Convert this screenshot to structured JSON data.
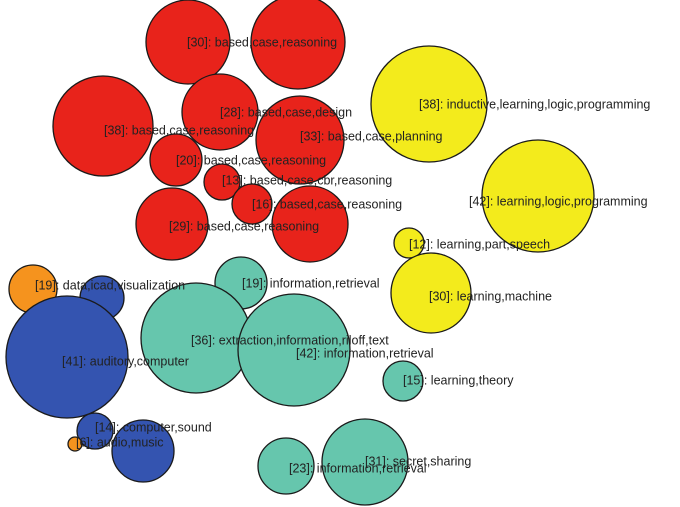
{
  "colors": {
    "red": "#e8231b",
    "yellow": "#f3eb1c",
    "teal": "#66c6ad",
    "blue": "#3454b0",
    "orange": "#f5931e"
  },
  "bubbles": [
    {
      "name": "bubble-30-based-case-reasoning-a",
      "color": "red",
      "label": "[30]: based,case,reasoning"
    },
    {
      "name": "bubble-30-based-case-reasoning-b",
      "color": "red",
      "label": ""
    },
    {
      "name": "bubble-38-based-case-reasoning",
      "color": "red",
      "label": "[38]: based,case,reasoning"
    },
    {
      "name": "bubble-28-based-case-design",
      "color": "red",
      "label": "[28]: based,case,design"
    },
    {
      "name": "bubble-33-based-case-planning",
      "color": "red",
      "label": "[33]: based,case,planning"
    },
    {
      "name": "bubble-20-based-case-reasoning",
      "color": "red",
      "label": "[20]: based,case,reasoning"
    },
    {
      "name": "bubble-13-based-case-cbr-reasoning",
      "color": "red",
      "label": "[13]: based,case,cbr,reasoning"
    },
    {
      "name": "bubble-16-based-case-reasoning",
      "color": "red",
      "label": "[16]: based,case,reasoning"
    },
    {
      "name": "bubble-29-based-case-reasoning",
      "color": "red",
      "label": "[29]: based,case,reasoning"
    },
    {
      "name": "bubble-29-based-case-reasoning-b",
      "color": "red",
      "label": ""
    },
    {
      "name": "bubble-38-inductive-learning-logic-programming",
      "color": "yellow",
      "label": "[38]: inductive,learning,logic,programming"
    },
    {
      "name": "bubble-42-learning-logic-programming",
      "color": "yellow",
      "label": "[42]: learning,logic,programming"
    },
    {
      "name": "bubble-12-learning-part-speech",
      "color": "yellow",
      "label": "[12]: learning,part,speech"
    },
    {
      "name": "bubble-30-learning-machine",
      "color": "yellow",
      "label": "[30]: learning,machine"
    },
    {
      "name": "bubble-19-information-retrieval",
      "color": "teal",
      "label": "[19]: information,retrieval"
    },
    {
      "name": "bubble-36-extraction-information-riloff-text",
      "color": "teal",
      "label": "[36]: extraction,information,riloff,text"
    },
    {
      "name": "bubble-42-information-retrieval",
      "color": "teal",
      "label": "[42]: information,retrieval"
    },
    {
      "name": "bubble-15-learning-theory",
      "color": "teal",
      "label": "[15]: learning,theory"
    },
    {
      "name": "bubble-23-information-retrieval",
      "color": "teal",
      "label": "[23]: information,retrieval"
    },
    {
      "name": "bubble-31-secret-sharing",
      "color": "teal",
      "label": "[31]: secret,sharing"
    },
    {
      "name": "bubble-19-data-icad-visualization",
      "color": "orange",
      "label": "[19]: data,icad,visualization"
    },
    {
      "name": "bubble-19-data-icad-visualization-b",
      "color": "blue",
      "label": ""
    },
    {
      "name": "bubble-41-auditory-computer",
      "color": "blue",
      "label": "[41]: auditory,computer"
    },
    {
      "name": "bubble-14-computer-sound",
      "color": "blue",
      "label": "[14]: computer,sound"
    },
    {
      "name": "bubble-6-audio-music",
      "color": "orange",
      "label": "[6]: audio,music"
    },
    {
      "name": "bubble-6-audio-music-b",
      "color": "blue",
      "label": ""
    }
  ]
}
